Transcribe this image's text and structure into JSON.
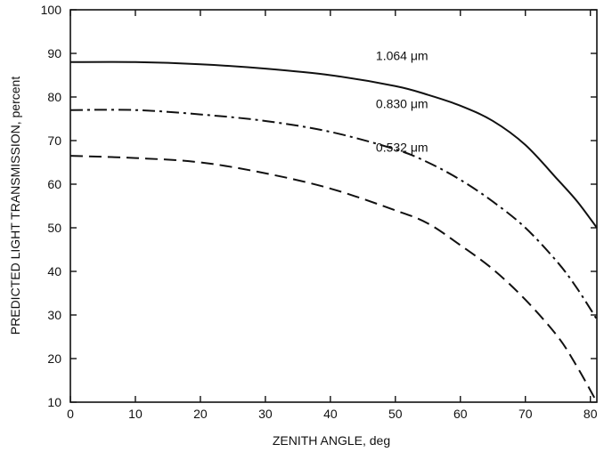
{
  "chart_data": {
    "type": "line",
    "xlabel": "ZENITH ANGLE, deg",
    "ylabel": "PREDICTED LIGHT TRANSMISSION, percent",
    "xlim": [
      0,
      81
    ],
    "ylim": [
      10,
      100
    ],
    "xticks": [
      0,
      10,
      20,
      30,
      40,
      50,
      60,
      70,
      80
    ],
    "yticks": [
      10,
      20,
      30,
      40,
      50,
      60,
      70,
      80,
      90,
      100
    ],
    "grid": false,
    "legend": "none",
    "series": [
      {
        "name": "1.064 μm",
        "line_style": "solid",
        "x": [
          0,
          10,
          20,
          30,
          40,
          50,
          55,
          60,
          65,
          70,
          75,
          78,
          81
        ],
        "y": [
          88,
          88,
          87.5,
          86.5,
          85,
          82.5,
          80.5,
          78,
          74.5,
          69,
          61,
          56,
          50
        ]
      },
      {
        "name": "0.830 μm",
        "line_style": "dash-dot",
        "x": [
          0,
          10,
          20,
          30,
          40,
          50,
          55,
          60,
          65,
          70,
          75,
          78,
          81
        ],
        "y": [
          77,
          77,
          76,
          74.5,
          72,
          68,
          65,
          61,
          56,
          50,
          42,
          36,
          29
        ]
      },
      {
        "name": "0.532 μm",
        "line_style": "dashed",
        "x": [
          0,
          10,
          20,
          30,
          40,
          50,
          55,
          60,
          65,
          70,
          75,
          78,
          81
        ],
        "y": [
          66.5,
          66,
          65,
          62.5,
          59,
          54,
          51,
          46,
          40.5,
          33.5,
          25,
          18,
          10
        ]
      }
    ]
  }
}
